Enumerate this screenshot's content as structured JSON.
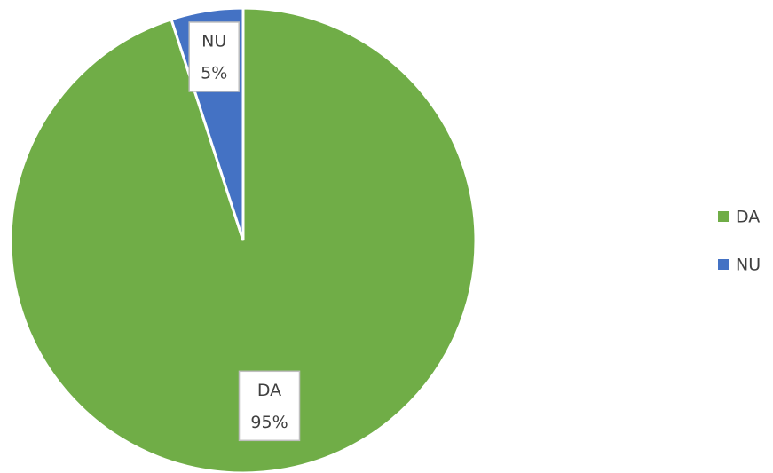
{
  "chart_data": {
    "type": "pie",
    "categories": [
      "DA",
      "NU"
    ],
    "values": [
      95,
      5
    ],
    "value_labels": [
      "95%",
      "5%"
    ],
    "colors": [
      "#70ad47",
      "#4472c4"
    ],
    "legend": "right"
  }
}
